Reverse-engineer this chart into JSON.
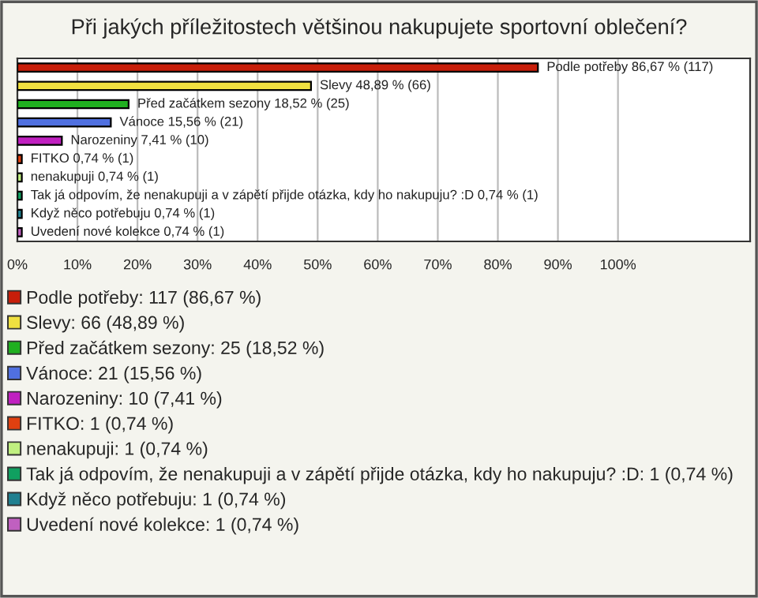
{
  "chart_data": {
    "type": "bar",
    "orientation": "horizontal",
    "title": "Při jakých příležitostech většinou nakupujete sportovní oblečení?",
    "categories": [
      null,
      null,
      null,
      null,
      null,
      null,
      null,
      null,
      null,
      null
    ],
    "values": [
      86.67,
      48.89,
      18.52,
      15.56,
      7.41,
      0.74,
      0.74,
      0.74,
      0.74,
      0.74
    ],
    "colors": [
      "#c81e0a",
      "#f0e040",
      "#20b020",
      "#5070e0",
      "#c020c0",
      "#e04010",
      "#c0f080",
      "#10a060",
      "#208090",
      "#c060c0"
    ],
    "value_labels": [
      "Podle potřeby 86,67 % (117)",
      "Slevy 48,89 % (66)",
      "Před začátkem sezony 18,52 % (25)",
      "Vánoce 15,56 % (21)",
      "Narozeniny 7,41 % (10)",
      "FITKO 0,74 % (1)",
      "nenakupuji 0,74 % (1)",
      "Tak já odpovím, že nenakupuji a v zápětí přijde otázka, kdy ho nakupuju? :D 0,74 % (1)",
      "Když něco potřebuju 0,74 % (1)",
      "Uvedení nové kolekce 0,74 % (1)"
    ],
    "xlim": [
      0,
      122
    ],
    "xticks": [
      {
        "value": 0,
        "label": "0%"
      },
      {
        "value": 10,
        "label": "10%"
      },
      {
        "value": 20,
        "label": "20%"
      },
      {
        "value": 30,
        "label": "30%"
      },
      {
        "value": 40,
        "label": "40%"
      },
      {
        "value": 50,
        "label": "50%"
      },
      {
        "value": 60,
        "label": "60%"
      },
      {
        "value": 70,
        "label": "70%"
      },
      {
        "value": 80,
        "label": "80%"
      },
      {
        "value": 90,
        "label": "90%"
      },
      {
        "value": 100,
        "label": "100%"
      }
    ],
    "grid": "x",
    "annotations": [
      "Podle potřeby: 117 (86,67 %)",
      "Slevy: 66 (48,89 %)",
      "Před začátkem sezony: 25 (18,52 %)",
      "Vánoce: 21 (15,56 %)",
      "Narozeniny: 10 (7,41 %)",
      "FITKO: 1 (0,74 %)",
      "nenakupuji: 1 (0,74 %)",
      "Tak já odpovím, že nenakupuji a v zápětí přijde otázka, kdy ho nakupuju? :D: 1 (0,74 %)",
      "Když něco potřebuju: 1 (0,74 %)",
      "Uvedení nové kolekce: 1 (0,74 %)"
    ]
  }
}
